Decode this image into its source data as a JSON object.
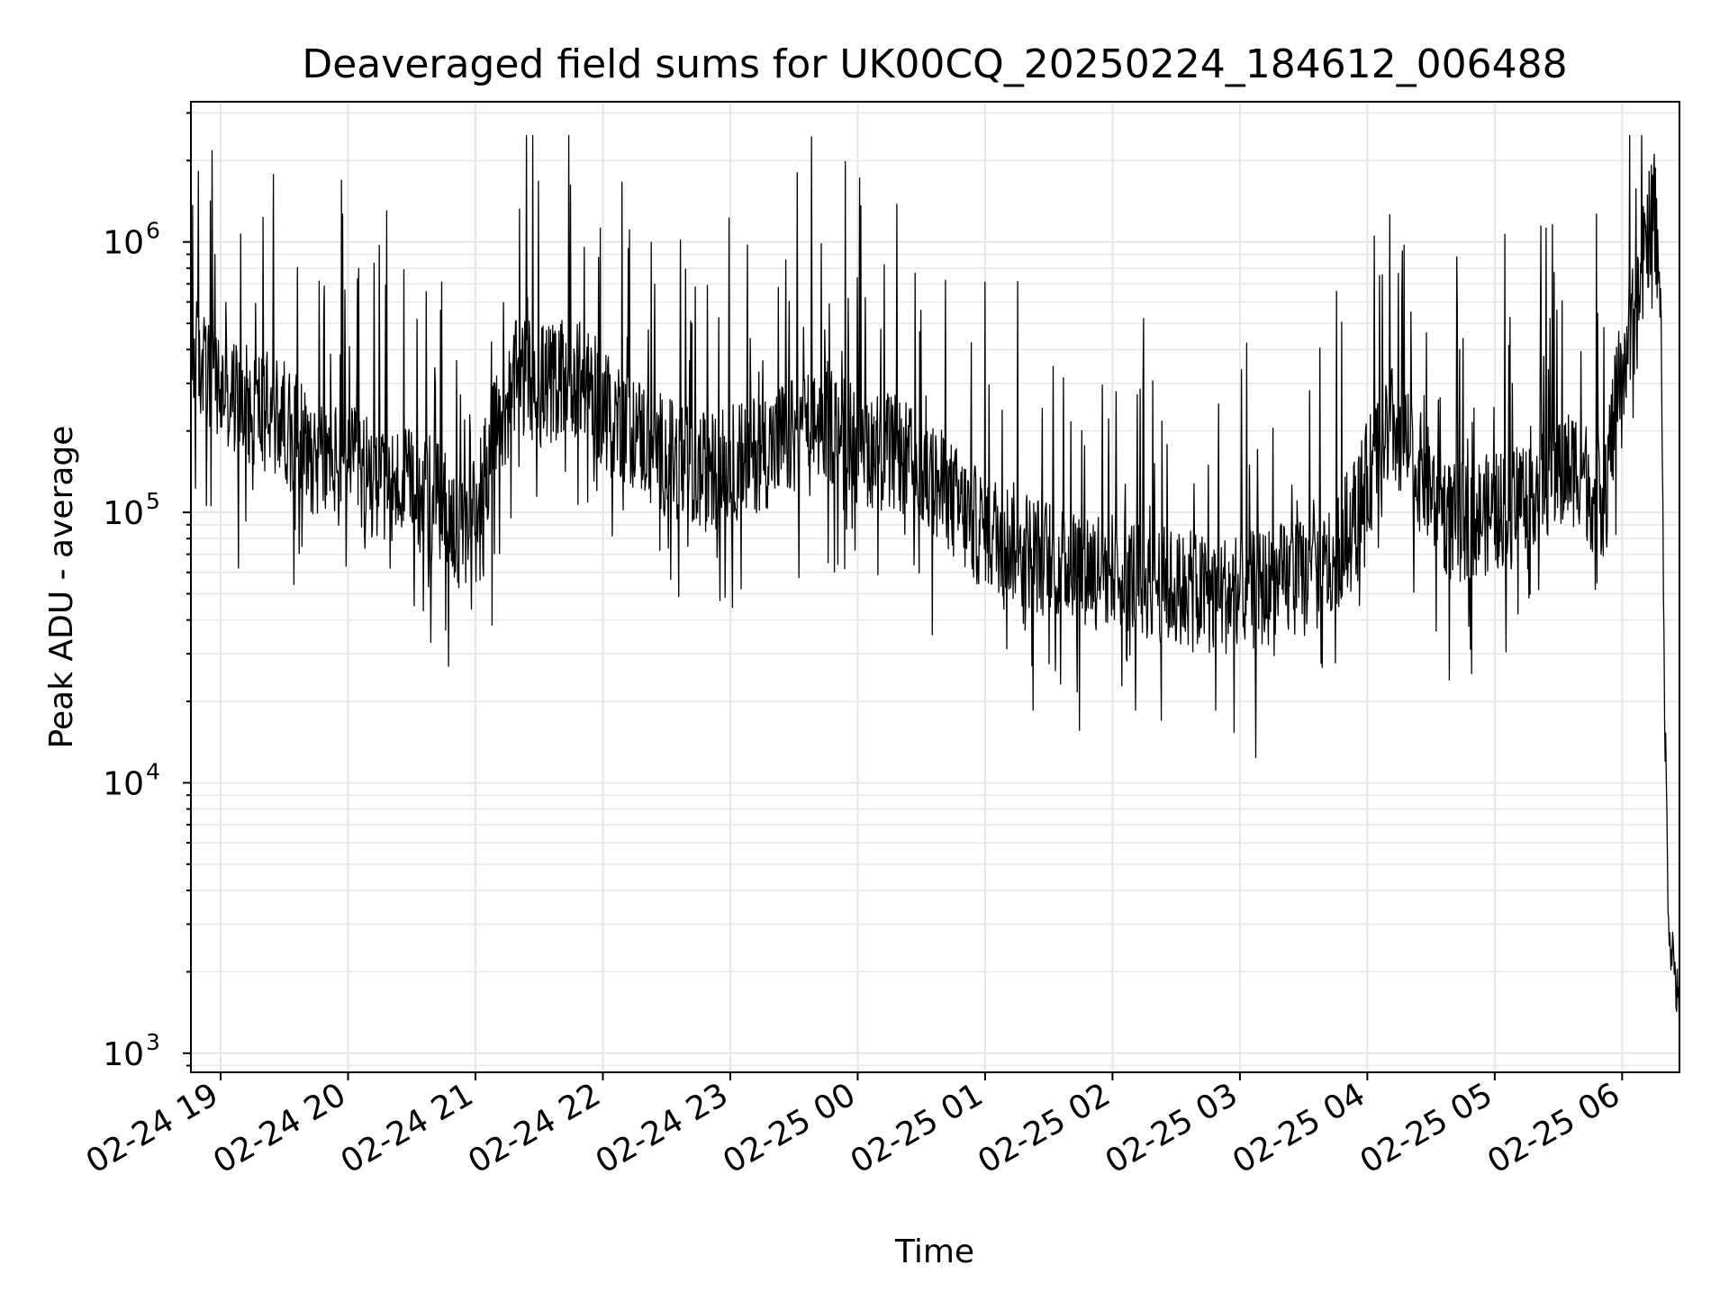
{
  "chart_data": {
    "type": "line",
    "title": "Deaveraged field sums for UK00CQ_20250224_184612_006488",
    "xlabel": "Time",
    "ylabel": "Peak ADU - average",
    "yscale": "log",
    "xlim": [
      "2025-02-24 18:46",
      "2025-02-25 06:27"
    ],
    "ylim": [
      850,
      3300000
    ],
    "grid": "major and minor, both axes",
    "line_color": "#000000",
    "grid_color": "#e6e6e6",
    "x_ticks": [
      {
        "t": "2025-02-24 19:00",
        "label": "02-24 19"
      },
      {
        "t": "2025-02-24 20:00",
        "label": "02-24 20"
      },
      {
        "t": "2025-02-24 21:00",
        "label": "02-24 21"
      },
      {
        "t": "2025-02-24 22:00",
        "label": "02-24 22"
      },
      {
        "t": "2025-02-24 23:00",
        "label": "02-24 23"
      },
      {
        "t": "2025-02-25 00:00",
        "label": "02-25 00"
      },
      {
        "t": "2025-02-25 01:00",
        "label": "02-25 01"
      },
      {
        "t": "2025-02-25 02:00",
        "label": "02-25 02"
      },
      {
        "t": "2025-02-25 03:00",
        "label": "02-25 03"
      },
      {
        "t": "2025-02-25 04:00",
        "label": "02-25 04"
      },
      {
        "t": "2025-02-25 05:00",
        "label": "02-25 05"
      },
      {
        "t": "2025-02-25 06:00",
        "label": "02-25 06"
      }
    ],
    "y_ticks": [
      {
        "value": 1000,
        "base": "10",
        "exp": "3"
      },
      {
        "value": 10000,
        "base": "10",
        "exp": "4"
      },
      {
        "value": 100000,
        "base": "10",
        "exp": "5"
      },
      {
        "value": 1000000,
        "base": "10",
        "exp": "6"
      }
    ],
    "series": [
      {
        "x": [
          "2025-02-24 18:46",
          "2025-02-24 19:00",
          "2025-02-24 19:15",
          "2025-02-24 19:30",
          "2025-02-24 19:45",
          "2025-02-24 20:00",
          "2025-02-24 20:15",
          "2025-02-24 20:30",
          "2025-02-24 20:45",
          "2025-02-24 20:55",
          "2025-02-24 21:05",
          "2025-02-24 21:20",
          "2025-02-24 21:35",
          "2025-02-24 21:45",
          "2025-02-24 22:00",
          "2025-02-24 22:15",
          "2025-02-24 22:30",
          "2025-02-24 22:45",
          "2025-02-24 23:00",
          "2025-02-24 23:15",
          "2025-02-24 23:30",
          "2025-02-24 23:45",
          "2025-02-25 00:00",
          "2025-02-25 00:20",
          "2025-02-25 00:40",
          "2025-02-25 00:55",
          "2025-02-25 01:10",
          "2025-02-25 01:25",
          "2025-02-25 01:40",
          "2025-02-25 02:00",
          "2025-02-25 02:20",
          "2025-02-25 02:40",
          "2025-02-25 03:00",
          "2025-02-25 03:20",
          "2025-02-25 03:40",
          "2025-02-25 03:55",
          "2025-02-25 04:10",
          "2025-02-25 04:25",
          "2025-02-25 04:40",
          "2025-02-25 05:00",
          "2025-02-25 05:20",
          "2025-02-25 05:40",
          "2025-02-25 05:50",
          "2025-02-25 06:00",
          "2025-02-25 06:08",
          "2025-02-25 06:12",
          "2025-02-25 06:15",
          "2025-02-25 06:18",
          "2025-02-25 06:20",
          "2025-02-25 06:22",
          "2025-02-25 06:25",
          "2025-02-25 06:27"
        ],
        "y": [
          400000,
          280000,
          250000,
          220000,
          160000,
          150000,
          130000,
          120000,
          110000,
          75000,
          150000,
          320000,
          300000,
          330000,
          250000,
          200000,
          160000,
          140000,
          150000,
          170000,
          190000,
          220000,
          180000,
          160000,
          120000,
          90000,
          80000,
          70000,
          65000,
          62000,
          55000,
          50000,
          50000,
          55000,
          60000,
          100000,
          220000,
          140000,
          90000,
          100000,
          130000,
          150000,
          100000,
          350000,
          600000,
          1100000,
          1300000,
          800000,
          20000,
          3000,
          2000,
          1200
        ]
      }
    ]
  }
}
